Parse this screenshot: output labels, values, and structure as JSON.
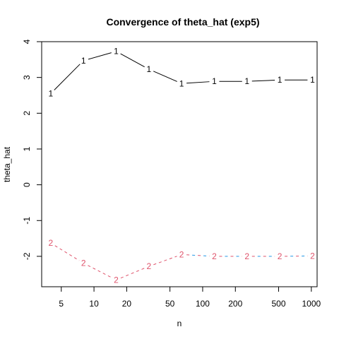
{
  "chart_data": {
    "type": "line",
    "title": "Convergence of theta_hat (exp5)",
    "xlabel": "n",
    "ylabel": "theta_hat",
    "xscale": "log",
    "x": [
      4,
      8,
      16,
      32,
      64,
      128,
      256,
      512,
      1024
    ],
    "xticks": [
      5,
      10,
      20,
      50,
      100,
      200,
      500,
      1000
    ],
    "yticks": [
      -2,
      -1,
      0,
      1,
      2,
      3,
      4
    ],
    "ylim": [
      -2.85,
      4.0
    ],
    "xlim": [
      3.3,
      1130
    ],
    "series": [
      {
        "marker": "1",
        "color": "#000000",
        "linestyle": "solid",
        "values": [
          2.55,
          3.47,
          3.73,
          3.23,
          2.83,
          2.89,
          2.89,
          2.93,
          2.93
        ]
      },
      {
        "marker": "2",
        "color": "#df536b",
        "dashcolors": [
          "#df536b",
          "#2297e6"
        ],
        "linestyle": "dashed",
        "values": [
          -1.63,
          -2.19,
          -2.66,
          -2.28,
          -1.95,
          -2.0,
          -2.0,
          -2.0,
          -1.99
        ]
      }
    ]
  }
}
